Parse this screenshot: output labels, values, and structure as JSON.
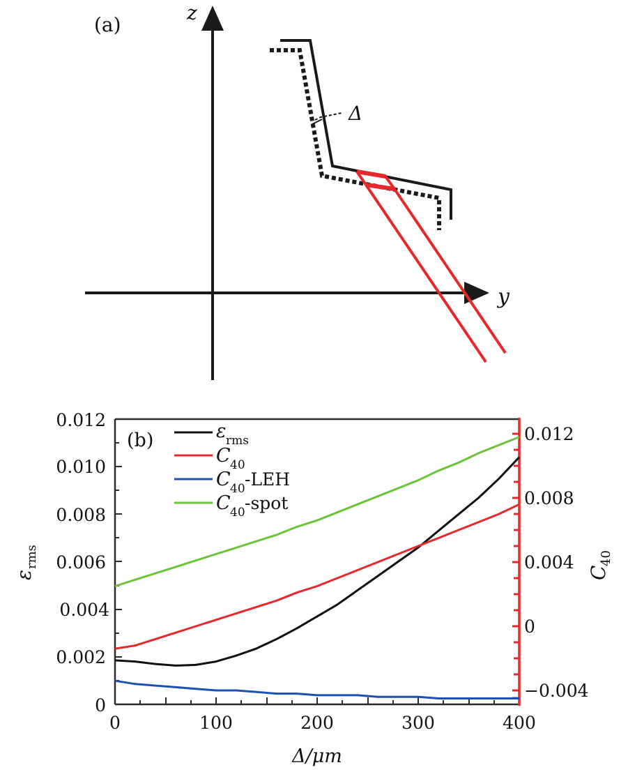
{
  "panel_a": {
    "label": "(a)",
    "z_axis_label": "z",
    "y_axis_label": "y",
    "delta_label": "Δ"
  },
  "panel_b": {
    "label": "(b)",
    "legend": [
      {
        "name": "ε_rms",
        "main": "ε",
        "sub": "rms",
        "suffix": "",
        "color": "#111111"
      },
      {
        "name": "C40",
        "main": "C",
        "sub": "40",
        "suffix": "",
        "color": "#e8272a"
      },
      {
        "name": "C40-LEH",
        "main": "C",
        "sub": "40",
        "suffix": "-LEH",
        "color": "#1f4fb4"
      },
      {
        "name": "C40-spot",
        "main": "C",
        "sub": "40",
        "suffix": "-spot",
        "color": "#6cc33a"
      }
    ],
    "left_ticks": [
      "0",
      "0.002",
      "0.004",
      "0.006",
      "0.008",
      "0.010",
      "0.012"
    ],
    "right_ticks": [
      "−0.004",
      "0",
      "0.004",
      "0.008",
      "0.012"
    ],
    "x_ticks": [
      "0",
      "100",
      "200",
      "300",
      "400"
    ],
    "left_label_main": "ε",
    "left_label_sub": "rms",
    "right_label_main": "C",
    "right_label_sub": "40",
    "x_label": "Δ/μm"
  },
  "chart_data": [
    {
      "type": "diagram",
      "title": "(a)",
      "axes": [
        "z",
        "y"
      ],
      "annotations": [
        "Δ"
      ]
    },
    {
      "type": "line",
      "title": "(b)",
      "xlabel": "Δ/μm",
      "ylabel": "ε_rms",
      "ylabel_right": "C40",
      "xlim": [
        0,
        400
      ],
      "ylim": [
        0,
        0.012
      ],
      "ylim_right": [
        -0.005,
        0.013
      ],
      "grid": false,
      "legend_position": "upper left",
      "x": [
        0,
        20,
        40,
        60,
        80,
        100,
        120,
        140,
        160,
        180,
        200,
        220,
        240,
        260,
        280,
        300,
        320,
        340,
        360,
        380,
        400
      ],
      "series": [
        {
          "name": "ε_rms",
          "axis": "left",
          "color": "#111111",
          "values": [
            0.00185,
            0.0018,
            0.0017,
            0.00163,
            0.00166,
            0.0018,
            0.00205,
            0.00235,
            0.00275,
            0.0032,
            0.0037,
            0.0042,
            0.0048,
            0.0054,
            0.006,
            0.0066,
            0.0073,
            0.008,
            0.0087,
            0.0095,
            0.0104
          ]
        },
        {
          "name": "C40",
          "axis": "right",
          "color": "#e8272a",
          "values": [
            -0.0014,
            -0.0012,
            -0.0008,
            -0.0004,
            0.0,
            0.0004,
            0.0008,
            0.0012,
            0.0016,
            0.0021,
            0.0025,
            0.003,
            0.0035,
            0.004,
            0.0045,
            0.005,
            0.0055,
            0.006,
            0.0065,
            0.007,
            0.0076
          ]
        },
        {
          "name": "C40-LEH",
          "axis": "right",
          "color": "#1f4fb4",
          "values": [
            -0.0034,
            -0.0036,
            -0.0037,
            -0.0038,
            -0.0039,
            -0.004,
            -0.004,
            -0.0041,
            -0.0042,
            -0.0042,
            -0.0043,
            -0.0043,
            -0.0043,
            -0.0044,
            -0.0044,
            -0.0044,
            -0.0045,
            -0.0045,
            -0.0045,
            -0.0045,
            -0.0045
          ]
        },
        {
          "name": "C40-spot",
          "axis": "right",
          "color": "#6cc33a",
          "values": [
            0.0025,
            0.0029,
            0.0033,
            0.0037,
            0.0041,
            0.0045,
            0.0049,
            0.0053,
            0.0057,
            0.0062,
            0.0066,
            0.0071,
            0.0076,
            0.0081,
            0.0086,
            0.0091,
            0.0097,
            0.0102,
            0.0108,
            0.0113,
            0.0118
          ]
        }
      ]
    }
  ]
}
